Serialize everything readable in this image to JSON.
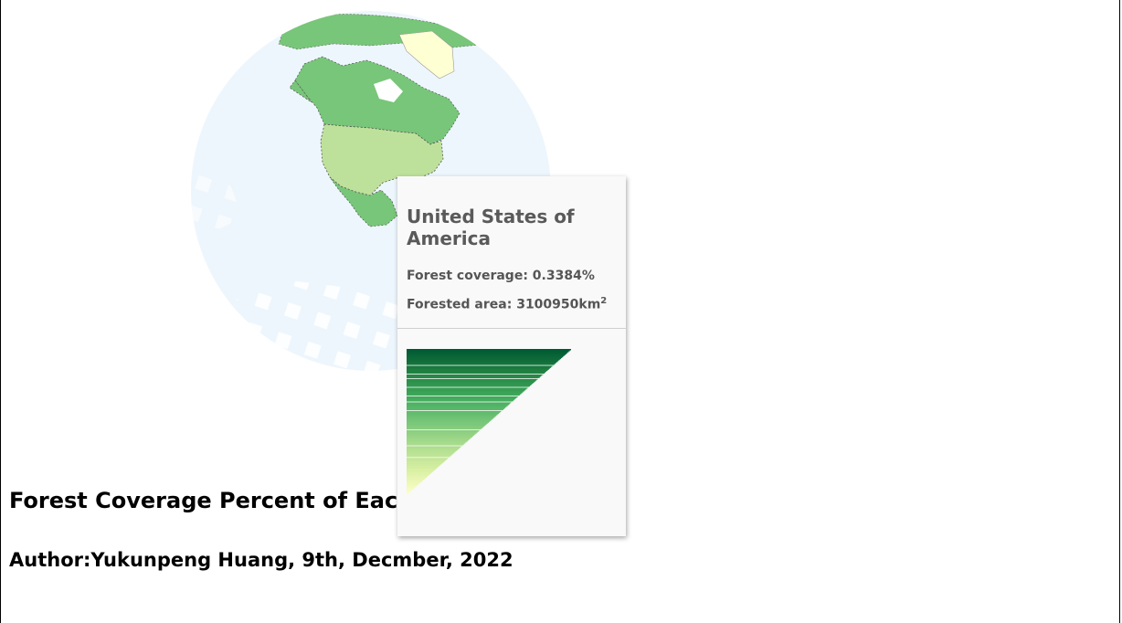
{
  "page": {
    "title": "Forest Coverage Percent of Each C",
    "author": "Author:Yukunpeng Huang, 9th, Decmber, 2022"
  },
  "tooltip": {
    "country": "United States of America",
    "coverage_label": "Forest coverage:",
    "coverage_value": "0.3384%",
    "area_label": "Forested area:",
    "area_value": "3100950km",
    "area_unit_sup": "2"
  },
  "globe": {
    "projection": "orthographic",
    "center": "North America",
    "ocean_color": "#eef6fd",
    "countries": [
      {
        "name": "Canada",
        "color": "#78c679"
      },
      {
        "name": "United States of America",
        "color": "#bde19a",
        "highlighted": true
      },
      {
        "name": "Mexico",
        "color": "#78c679"
      },
      {
        "name": "Greenland",
        "color": "#ffffd4"
      },
      {
        "name": "Russia (partial)",
        "color": "#78c679"
      }
    ],
    "border_style": "dashed"
  },
  "chart_data": {
    "type": "bar",
    "orientation": "horizontal",
    "sorted": "descending",
    "color_scale": [
      "#005a32",
      "#238443",
      "#41ab5d",
      "#78c679",
      "#addd8e",
      "#d9f0a3",
      "#ffffcc"
    ],
    "values": [
      100,
      99.3,
      98.6,
      97.9,
      97.3,
      96.6,
      95.9,
      95.2,
      94.6,
      93.9,
      93.2,
      92.5,
      91.9,
      91.2,
      90.5,
      89.8,
      89.2,
      88.5,
      87.8,
      87.1,
      86.5,
      85.8,
      85.1,
      84.4,
      83.8,
      83.1,
      82.4,
      81.7,
      81.1,
      80.4,
      79.7,
      79.0,
      78.4,
      77.7,
      77.0,
      76.3,
      75.7,
      75.0,
      74.3,
      73.6,
      73.0,
      72.3,
      71.6,
      70.9,
      70.3,
      69.6,
      68.9,
      68.2,
      67.6,
      66.9,
      66.2,
      65.5,
      64.9,
      64.2,
      63.5,
      62.8,
      62.2,
      61.5,
      60.8,
      60.1,
      59.5,
      58.8,
      58.1,
      57.4,
      56.8,
      56.1,
      55.4,
      54.7,
      54.1,
      53.4,
      52.7,
      52.0,
      51.4,
      50.7,
      50.0,
      49.3,
      48.6,
      48.0,
      47.3,
      46.6,
      45.9,
      45.3,
      44.6,
      43.9,
      43.2,
      42.6,
      41.9,
      41.2,
      40.5,
      39.9,
      39.2,
      38.5,
      37.8,
      37.2,
      36.5,
      35.8,
      35.1,
      34.5,
      33.8,
      33.1,
      32.4,
      31.8,
      31.1,
      30.4,
      29.7,
      29.1,
      28.4,
      27.7,
      27.0,
      26.4,
      25.7,
      25.0,
      24.3,
      23.6,
      23.0,
      22.3,
      21.6,
      20.9,
      20.3,
      19.6,
      18.9,
      18.2,
      17.6,
      16.9,
      16.2,
      15.5,
      14.9,
      14.2,
      13.5,
      12.8,
      12.2,
      11.5,
      10.8,
      10.1,
      9.5,
      8.8,
      8.1,
      7.4,
      6.8,
      6.1,
      5.4,
      4.7,
      4.1,
      3.4,
      2.7,
      2.0,
      1.4,
      0.7,
      0
    ]
  }
}
